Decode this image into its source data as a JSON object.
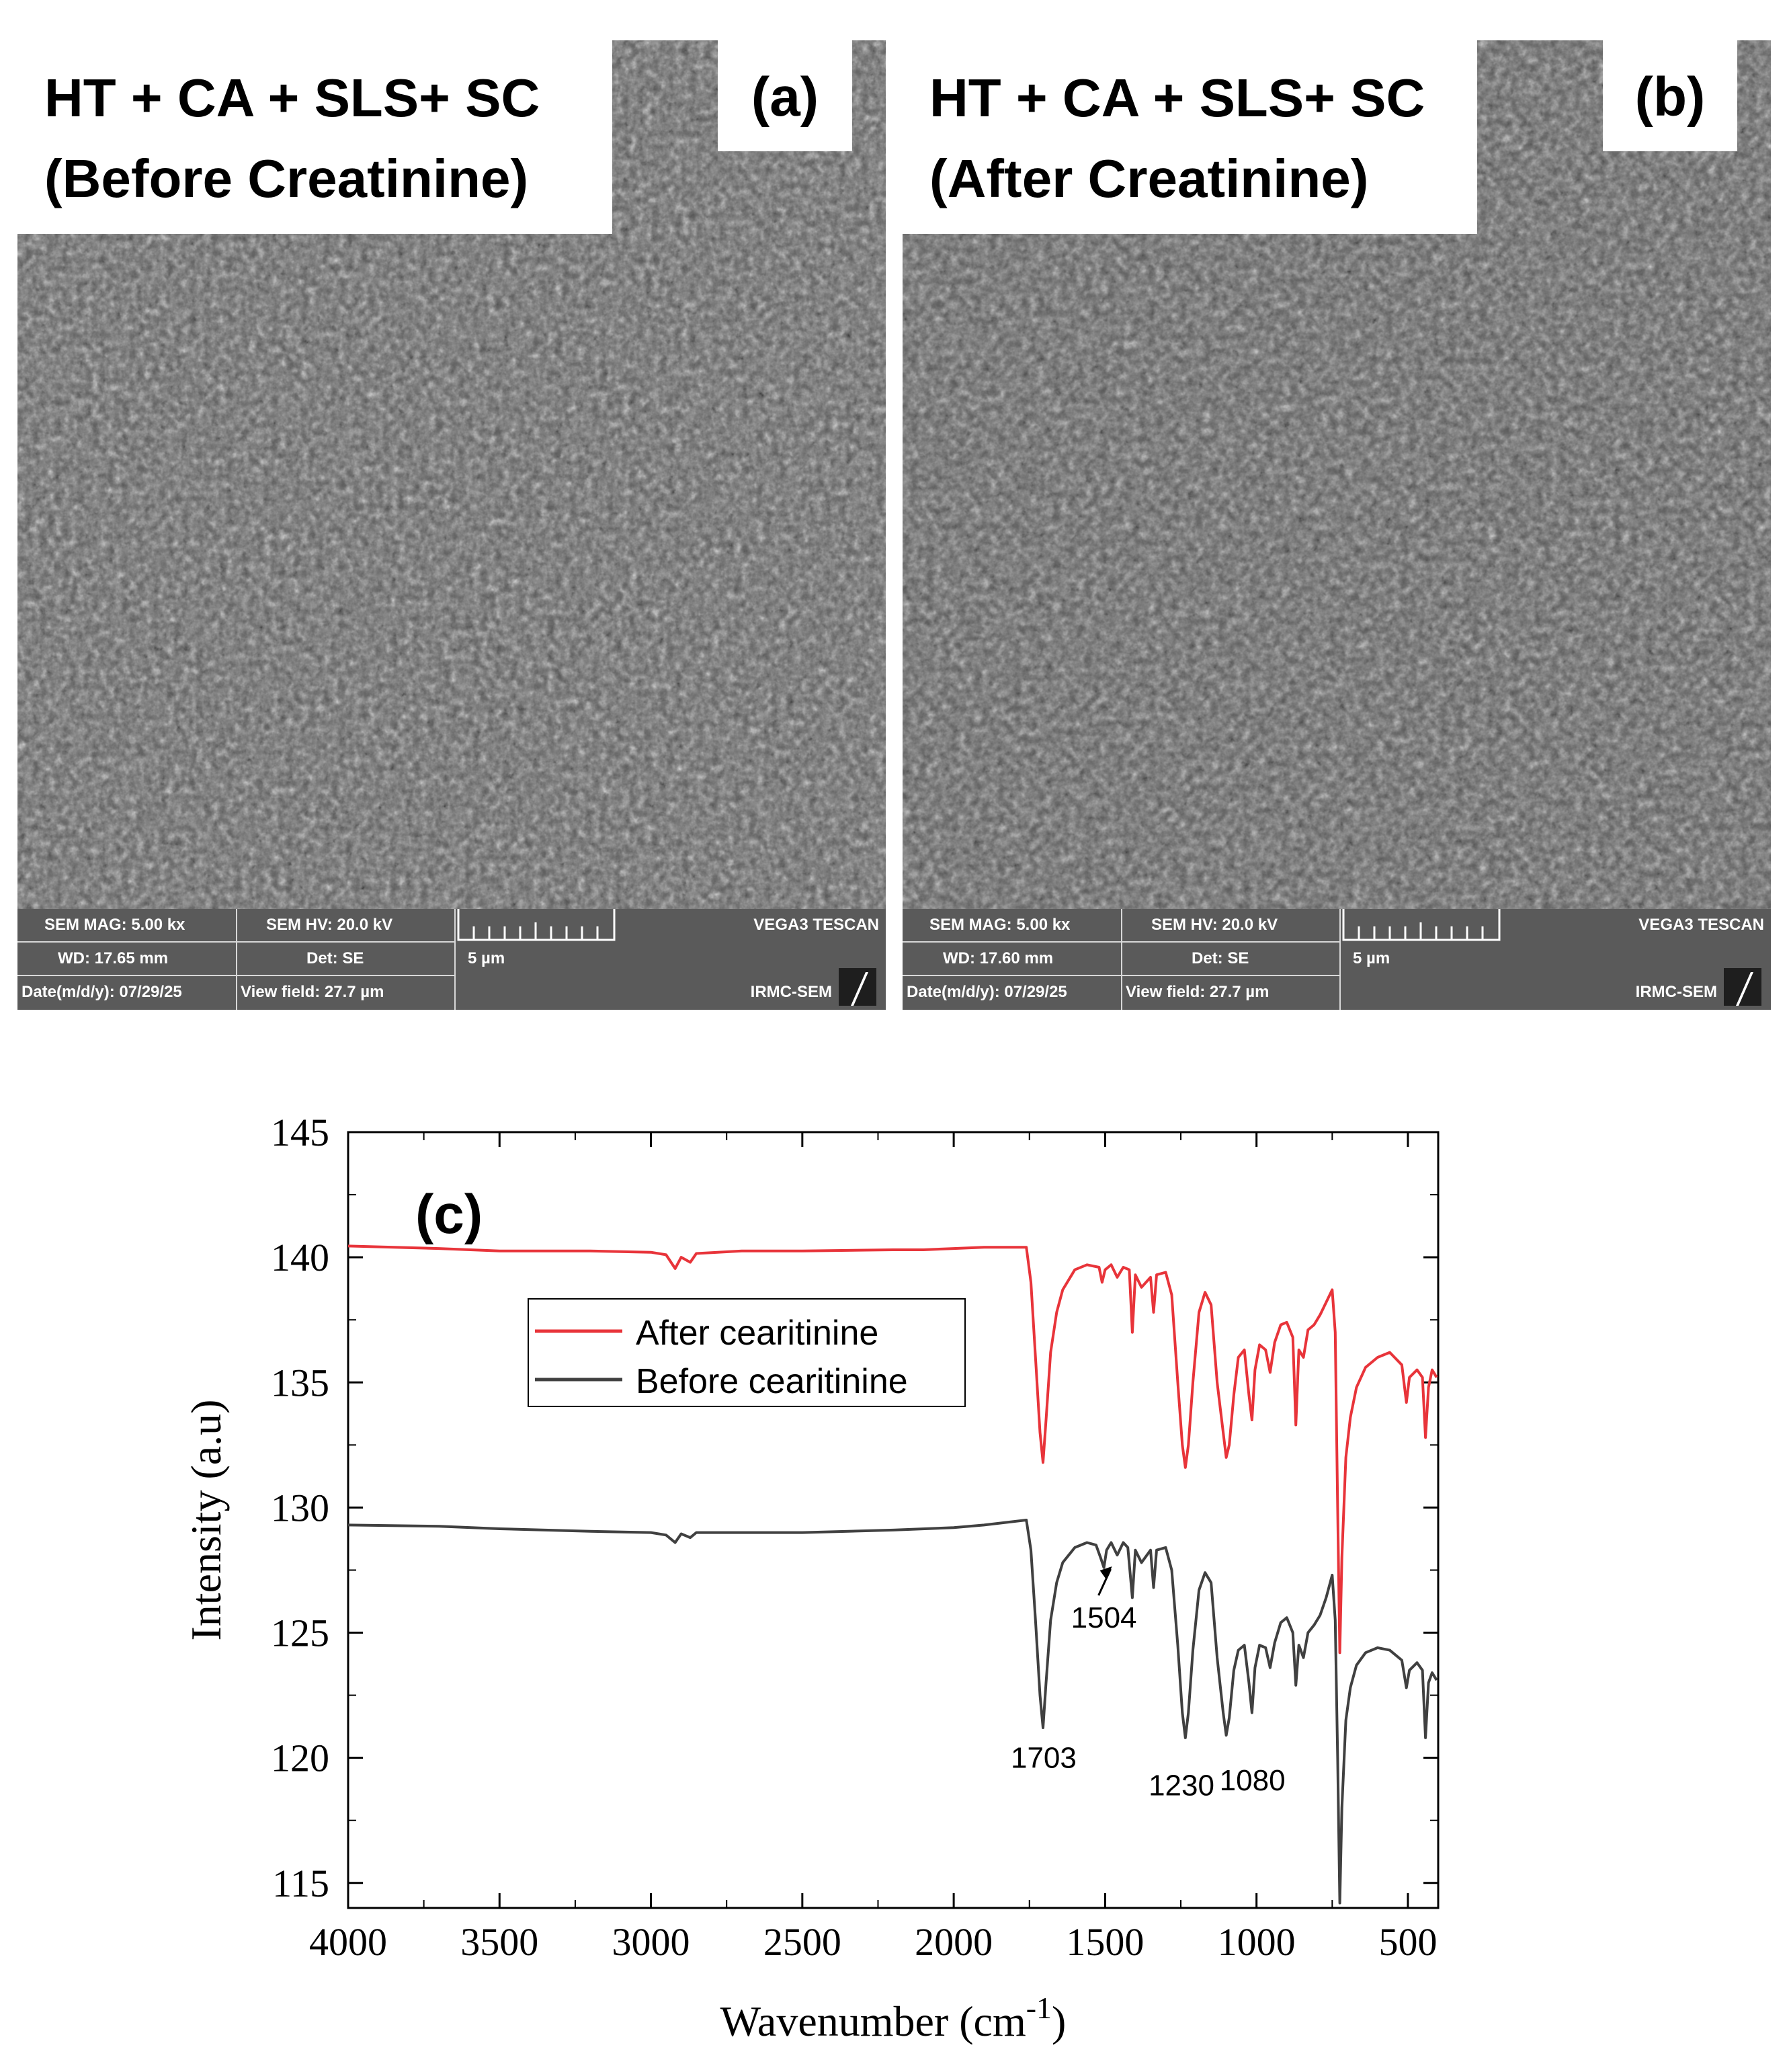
{
  "panels": [
    {
      "caption_line1": "HT + CA + SLS+ SC",
      "caption_line2": "(Before Creatinine)",
      "letter": "(a)",
      "sem_mag": "SEM MAG: 5.00 kx",
      "sem_hv": "SEM HV: 20.0 kV",
      "instrument": "VEGA3 TESCAN",
      "wd": "WD: 17.65 mm",
      "det": "Det: SE",
      "scale": "5 µm",
      "date": "Date(m/d/y): 07/29/25",
      "view_field": "View field: 27.7 µm",
      "lab": "IRMC-SEM"
    },
    {
      "caption_line1": "HT + CA + SLS+ SC",
      "caption_line2": "(After Creatinine)",
      "letter": "(b)",
      "sem_mag": "SEM MAG: 5.00 kx",
      "sem_hv": "SEM HV: 20.0 kV",
      "instrument": "VEGA3 TESCAN",
      "wd": "WD: 17.60 mm",
      "det": "Det: SE",
      "scale": "5 µm",
      "date": "Date(m/d/y): 07/29/25",
      "view_field": "View field: 27.7 µm",
      "lab": "IRMC-SEM"
    }
  ],
  "chart_data": {
    "type": "line",
    "panel_label": "(c)",
    "xlabel": "Wavenumber (cm",
    "xlabel_sup": "-1",
    "xlabel_end": ")",
    "ylabel": "Intensity (a.u)",
    "xlim": [
      4000,
      400
    ],
    "ylim": [
      114,
      145
    ],
    "x_ticks": [
      4000,
      3500,
      3000,
      2500,
      2000,
      1500,
      1000,
      500
    ],
    "y_ticks": [
      115,
      120,
      125,
      130,
      135,
      140,
      145
    ],
    "legend_position": "upper-center",
    "series": [
      {
        "name": "After cearitinine",
        "color": "#e8343a",
        "points": [
          [
            4000,
            140.45
          ],
          [
            3700,
            140.35
          ],
          [
            3500,
            140.25
          ],
          [
            3200,
            140.25
          ],
          [
            3000,
            140.2
          ],
          [
            2950,
            140.1
          ],
          [
            2920,
            139.55
          ],
          [
            2900,
            140.0
          ],
          [
            2870,
            139.8
          ],
          [
            2850,
            140.15
          ],
          [
            2700,
            140.25
          ],
          [
            2500,
            140.25
          ],
          [
            2200,
            140.3
          ],
          [
            2100,
            140.3
          ],
          [
            2000,
            140.35
          ],
          [
            1900,
            140.4
          ],
          [
            1760,
            140.4
          ],
          [
            1745,
            139.0
          ],
          [
            1730,
            136.0
          ],
          [
            1715,
            133.0
          ],
          [
            1705,
            131.8
          ],
          [
            1695,
            133.5
          ],
          [
            1680,
            136.2
          ],
          [
            1660,
            137.8
          ],
          [
            1640,
            138.7
          ],
          [
            1600,
            139.5
          ],
          [
            1560,
            139.7
          ],
          [
            1520,
            139.6
          ],
          [
            1510,
            139.0
          ],
          [
            1500,
            139.5
          ],
          [
            1480,
            139.7
          ],
          [
            1460,
            139.2
          ],
          [
            1440,
            139.6
          ],
          [
            1420,
            139.5
          ],
          [
            1410,
            137.0
          ],
          [
            1400,
            139.3
          ],
          [
            1380,
            138.8
          ],
          [
            1350,
            139.2
          ],
          [
            1340,
            137.8
          ],
          [
            1330,
            139.3
          ],
          [
            1300,
            139.4
          ],
          [
            1280,
            138.5
          ],
          [
            1260,
            135.0
          ],
          [
            1245,
            132.5
          ],
          [
            1235,
            131.6
          ],
          [
            1225,
            132.5
          ],
          [
            1210,
            135.0
          ],
          [
            1190,
            137.8
          ],
          [
            1170,
            138.6
          ],
          [
            1150,
            138.1
          ],
          [
            1130,
            135.0
          ],
          [
            1110,
            133.0
          ],
          [
            1100,
            132.0
          ],
          [
            1090,
            132.5
          ],
          [
            1075,
            134.5
          ],
          [
            1060,
            136.0
          ],
          [
            1040,
            136.3
          ],
          [
            1025,
            134.5
          ],
          [
            1015,
            133.5
          ],
          [
            1005,
            135.5
          ],
          [
            990,
            136.5
          ],
          [
            970,
            136.3
          ],
          [
            955,
            135.4
          ],
          [
            940,
            136.6
          ],
          [
            920,
            137.3
          ],
          [
            900,
            137.4
          ],
          [
            880,
            136.8
          ],
          [
            870,
            133.3
          ],
          [
            860,
            136.3
          ],
          [
            845,
            136.0
          ],
          [
            830,
            137.1
          ],
          [
            810,
            137.3
          ],
          [
            790,
            137.7
          ],
          [
            770,
            138.2
          ],
          [
            750,
            138.7
          ],
          [
            740,
            137.0
          ],
          [
            732,
            130.0
          ],
          [
            725,
            124.2
          ],
          [
            718,
            128.0
          ],
          [
            705,
            132.0
          ],
          [
            690,
            133.6
          ],
          [
            670,
            134.8
          ],
          [
            640,
            135.6
          ],
          [
            600,
            136.0
          ],
          [
            560,
            136.2
          ],
          [
            520,
            135.7
          ],
          [
            505,
            134.2
          ],
          [
            495,
            135.2
          ],
          [
            470,
            135.5
          ],
          [
            452,
            135.2
          ],
          [
            442,
            132.8
          ],
          [
            432,
            134.8
          ],
          [
            420,
            135.5
          ],
          [
            405,
            135.2
          ]
        ]
      },
      {
        "name": "Before cearitinine",
        "color": "#404040",
        "points": [
          [
            4000,
            129.3
          ],
          [
            3700,
            129.25
          ],
          [
            3500,
            129.15
          ],
          [
            3200,
            129.05
          ],
          [
            3000,
            129.0
          ],
          [
            2950,
            128.9
          ],
          [
            2920,
            128.6
          ],
          [
            2900,
            128.95
          ],
          [
            2870,
            128.8
          ],
          [
            2850,
            129.0
          ],
          [
            2700,
            129.0
          ],
          [
            2500,
            129.0
          ],
          [
            2200,
            129.1
          ],
          [
            2000,
            129.2
          ],
          [
            1900,
            129.3
          ],
          [
            1760,
            129.5
          ],
          [
            1745,
            128.3
          ],
          [
            1730,
            125.5
          ],
          [
            1715,
            122.5
          ],
          [
            1705,
            121.2
          ],
          [
            1695,
            123.0
          ],
          [
            1680,
            125.5
          ],
          [
            1660,
            127.0
          ],
          [
            1640,
            127.8
          ],
          [
            1600,
            128.4
          ],
          [
            1560,
            128.6
          ],
          [
            1530,
            128.5
          ],
          [
            1515,
            128.0
          ],
          [
            1504,
            127.6
          ],
          [
            1495,
            128.3
          ],
          [
            1480,
            128.6
          ],
          [
            1460,
            128.1
          ],
          [
            1440,
            128.6
          ],
          [
            1425,
            128.4
          ],
          [
            1410,
            126.4
          ],
          [
            1400,
            128.3
          ],
          [
            1380,
            127.8
          ],
          [
            1350,
            128.3
          ],
          [
            1340,
            126.8
          ],
          [
            1330,
            128.3
          ],
          [
            1300,
            128.4
          ],
          [
            1280,
            127.5
          ],
          [
            1260,
            124.5
          ],
          [
            1245,
            121.8
          ],
          [
            1235,
            120.8
          ],
          [
            1225,
            121.8
          ],
          [
            1210,
            124.3
          ],
          [
            1190,
            126.7
          ],
          [
            1170,
            127.4
          ],
          [
            1150,
            127.0
          ],
          [
            1130,
            124.0
          ],
          [
            1110,
            121.8
          ],
          [
            1100,
            120.9
          ],
          [
            1090,
            121.6
          ],
          [
            1075,
            123.5
          ],
          [
            1060,
            124.3
          ],
          [
            1040,
            124.5
          ],
          [
            1025,
            123.0
          ],
          [
            1015,
            121.8
          ],
          [
            1005,
            123.6
          ],
          [
            990,
            124.5
          ],
          [
            970,
            124.4
          ],
          [
            955,
            123.6
          ],
          [
            940,
            124.6
          ],
          [
            920,
            125.4
          ],
          [
            900,
            125.6
          ],
          [
            880,
            125.0
          ],
          [
            870,
            122.9
          ],
          [
            860,
            124.5
          ],
          [
            845,
            124.0
          ],
          [
            830,
            125.0
          ],
          [
            810,
            125.3
          ],
          [
            790,
            125.7
          ],
          [
            770,
            126.4
          ],
          [
            750,
            127.3
          ],
          [
            740,
            125.5
          ],
          [
            732,
            120.0
          ],
          [
            725,
            114.2
          ],
          [
            718,
            118.0
          ],
          [
            705,
            121.5
          ],
          [
            690,
            122.8
          ],
          [
            670,
            123.7
          ],
          [
            640,
            124.2
          ],
          [
            600,
            124.4
          ],
          [
            560,
            124.3
          ],
          [
            520,
            123.9
          ],
          [
            505,
            122.8
          ],
          [
            495,
            123.5
          ],
          [
            470,
            123.8
          ],
          [
            452,
            123.5
          ],
          [
            442,
            120.8
          ],
          [
            432,
            123.0
          ],
          [
            420,
            123.4
          ],
          [
            405,
            123.1
          ]
        ]
      }
    ],
    "annotations": [
      {
        "text": "1703",
        "x": 1703,
        "y": 119.6
      },
      {
        "text": "1504",
        "x": 1504,
        "y": 125.2
      },
      {
        "text": "1230",
        "x": 1230,
        "y": 118.5
      },
      {
        "text": "1080",
        "x": 1080,
        "y": 118.7
      }
    ]
  }
}
